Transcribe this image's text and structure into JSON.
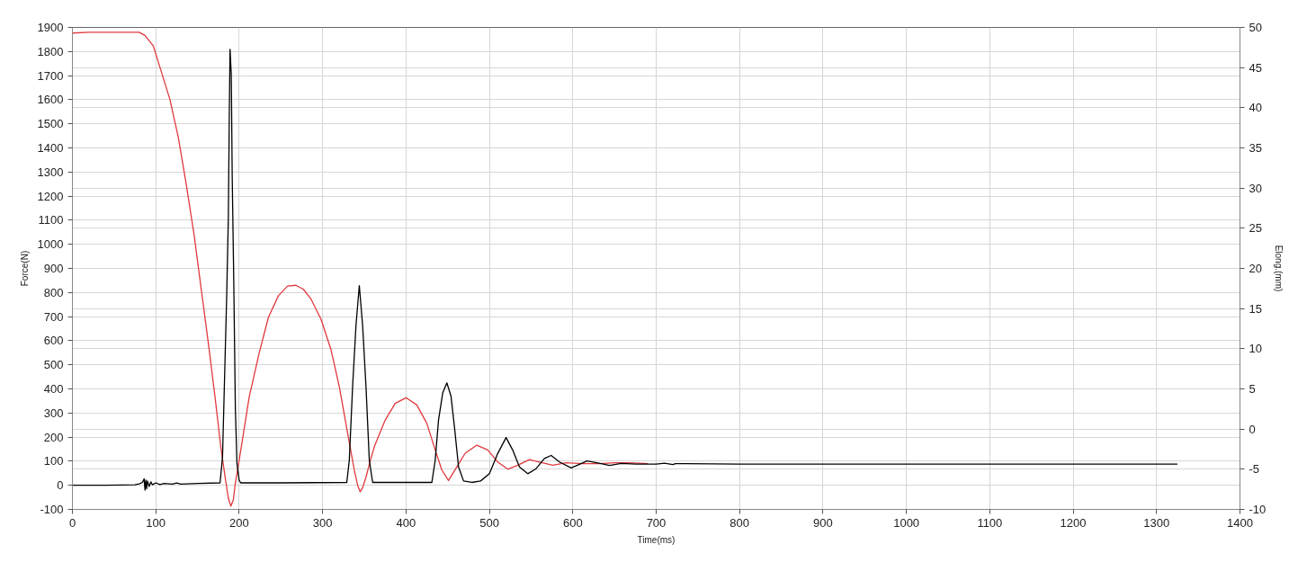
{
  "chart_data": {
    "type": "line",
    "xlabel": "Time(ms)",
    "ylabel": "Force(N)",
    "y2label": "Elong.(mm)",
    "xlim": [
      0,
      1400
    ],
    "xticks": [
      0,
      100,
      200,
      300,
      400,
      500,
      600,
      700,
      800,
      900,
      1000,
      1100,
      1200,
      1300,
      1400
    ],
    "ylim": [
      -100,
      1900
    ],
    "yticks": [
      -100,
      0,
      100,
      200,
      300,
      400,
      500,
      600,
      700,
      800,
      900,
      1000,
      1100,
      1200,
      1300,
      1400,
      1500,
      1600,
      1700,
      1800,
      1900
    ],
    "y2lim": [
      -10,
      50
    ],
    "y2ticks": [
      -10,
      -5,
      0,
      5,
      10,
      15,
      20,
      25,
      30,
      35,
      40,
      45,
      50
    ],
    "grid": true,
    "series": [
      {
        "color": "#e0393e",
        "axis": "y2",
        "x": [
          0,
          20,
          40,
          64,
          80,
          87,
          97,
          106,
          117,
          127,
          136,
          146,
          155,
          163,
          171,
          178,
          184,
          187,
          190,
          193,
          195,
          199,
          203,
          212,
          224,
          235,
          247,
          258,
          268,
          277,
          286,
          298,
          310,
          320,
          330,
          338,
          342,
          345,
          348,
          352,
          357,
          362,
          375,
          387,
          400,
          413,
          425,
          435,
          443,
          451,
          461,
          471,
          485,
          498,
          510,
          522,
          534,
          548,
          560,
          576,
          592,
          612,
          633,
          650,
          669,
          690
        ],
        "values": [
          49.3,
          49.4,
          49.4,
          49.4,
          49.4,
          49.0,
          47.7,
          44.7,
          41.0,
          36.3,
          30.8,
          24.1,
          17.0,
          10.7,
          4.0,
          -2.3,
          -6.6,
          -8.6,
          -9.6,
          -8.8,
          -7.0,
          -4.5,
          -1.9,
          4.0,
          9.5,
          13.9,
          16.6,
          17.8,
          17.9,
          17.4,
          16.2,
          13.7,
          9.9,
          5.3,
          -0.5,
          -5.1,
          -7.0,
          -7.8,
          -7.3,
          -6.0,
          -4.0,
          -2.2,
          1.1,
          3.2,
          3.9,
          3.0,
          0.7,
          -2.6,
          -5.1,
          -6.4,
          -4.7,
          -3.0,
          -2.0,
          -2.6,
          -4.1,
          -5.0,
          -4.5,
          -3.8,
          -4.1,
          -4.5,
          -4.2,
          -4.3,
          -4.3,
          -4.2,
          -4.2,
          -4.3
        ]
      },
      {
        "color": "#000000",
        "x": [
          0,
          40,
          60,
          75,
          80,
          84,
          86,
          87,
          88,
          89,
          90,
          92,
          94,
          96,
          100,
          105,
          110,
          120,
          125,
          130,
          150,
          177,
          180,
          185,
          187,
          188,
          189,
          190.5,
          191.6,
          193.5,
          195.4,
          197.3,
          200,
          202,
          250,
          329,
          332,
          336,
          340,
          344,
          348,
          352,
          356,
          360,
          431,
          435,
          439,
          444,
          449,
          454,
          458.5,
          463,
          469,
          479,
          489.5,
          500,
          510,
          520,
          528,
          536,
          546,
          556,
          566,
          574,
          584,
          598,
          608,
          617,
          633,
          644,
          658,
          676,
          700,
          710,
          720,
          723,
          800,
          1000,
          1200,
          1325
        ],
        "values": [
          0,
          0,
          1,
          2,
          6,
          12,
          27,
          -20,
          22,
          -15,
          18,
          -5,
          14,
          2,
          10,
          3,
          8,
          5,
          10,
          5,
          8,
          10,
          118,
          787,
          1114,
          1494,
          1809,
          1704,
          1285,
          839,
          315,
          92,
          20,
          10,
          10,
          12,
          104,
          411,
          662,
          829,
          662,
          411,
          104,
          12,
          12,
          104,
          271,
          383,
          425,
          369,
          229,
          76,
          18,
          12,
          18,
          48,
          132,
          198,
          146,
          76,
          48,
          69,
          111,
          124,
          97,
          72,
          87,
          101,
          91,
          82,
          91,
          88,
          88,
          92,
          86,
          90,
          88,
          88,
          88,
          88
        ]
      }
    ]
  }
}
